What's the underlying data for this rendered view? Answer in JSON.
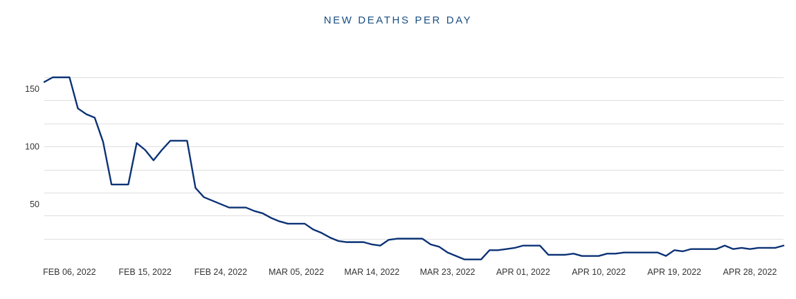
{
  "chart_data": {
    "type": "line",
    "title": "NEW DEATHS PER DAY",
    "xlabel": "",
    "ylabel": "",
    "ylim": [
      0,
      175
    ],
    "y_grid_values": [
      20,
      40,
      60,
      80,
      100,
      120,
      140,
      160
    ],
    "y_tick_values": [
      50,
      100,
      150
    ],
    "y_tick_labels": [
      "50",
      "100",
      "150"
    ],
    "x_tick_labels": [
      "FEB 06, 2022",
      "FEB 15, 2022",
      "FEB 24, 2022",
      "MAR 05, 2022",
      "MAR 14, 2022",
      "MAR 23, 2022",
      "APR 01, 2022",
      "APR 10, 2022",
      "APR 19, 2022",
      "APR 28, 2022"
    ],
    "x_tick_day_index": [
      3,
      12,
      21,
      30,
      39,
      48,
      57,
      66,
      75,
      84
    ],
    "grid": true,
    "series": [
      {
        "name": "New deaths",
        "color": "#0b3275",
        "start_date": "Feb 03, 2022",
        "values": [
          156,
          160,
          160,
          160,
          133,
          128,
          125,
          104,
          67,
          67,
          67,
          103,
          97,
          88,
          97,
          105,
          105,
          105,
          64,
          56,
          53,
          50,
          47,
          47,
          47,
          44,
          42,
          38,
          35,
          33,
          33,
          33,
          28,
          25,
          21,
          18,
          17,
          17,
          17,
          15,
          14,
          19,
          20,
          20,
          20,
          20,
          15,
          13,
          8,
          5,
          2,
          2,
          2,
          10,
          10,
          11,
          12,
          14,
          14,
          14,
          6,
          6,
          6,
          7,
          5,
          5,
          5,
          7,
          7,
          8,
          8,
          8,
          8,
          8,
          5,
          10,
          9,
          11,
          11,
          11,
          11,
          14,
          11,
          12,
          11,
          12,
          12,
          12,
          14
        ]
      }
    ]
  }
}
